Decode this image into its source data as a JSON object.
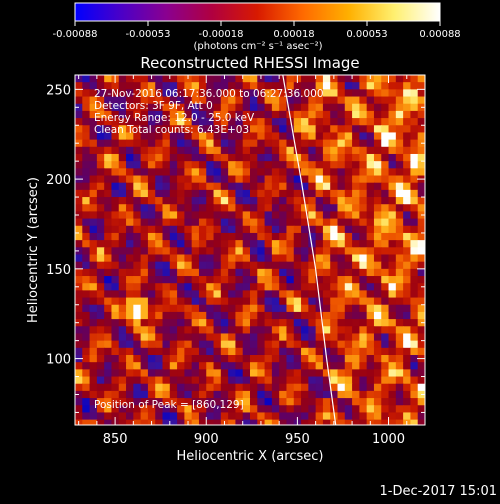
{
  "colorbar": {
    "tick_labels": [
      "-0.00088",
      "-0.00053",
      "-0.00018",
      "0.00018",
      "0.00053",
      "0.00088"
    ],
    "units": "(photons cm⁻² s⁻¹ asec⁻²)",
    "colors": [
      "#0000ff",
      "#4a00c8",
      "#8a0090",
      "#b00040",
      "#d81a00",
      "#ff6a00",
      "#ffb000",
      "#fff070",
      "#ffffff"
    ]
  },
  "chart_data": {
    "type": "heatmap",
    "title": "Reconstructed RHESSI Image",
    "xlabel": "Heliocentric X (arcsec)",
    "ylabel": "Heliocentric Y (arcsec)",
    "xlim": [
      828,
      1020
    ],
    "ylim": [
      63,
      258
    ],
    "x_ticks": [
      850,
      900,
      950,
      1000
    ],
    "y_ticks": [
      100,
      150,
      200,
      250
    ],
    "limb_curve": {
      "x": [
        942,
        952,
        960,
        966,
        971
      ],
      "y": [
        258,
        200,
        150,
        100,
        63
      ]
    },
    "peak": {
      "x": 860,
      "y": 129
    },
    "annotations": [
      "27-Nov-2016 06:17:36.000 to 06:27:36.000",
      "Detectors: 3F 9F, Att 0",
      "Energy Range: 12.0 - 25.0 keV",
      "Clean    Total counts: 6.43E+03"
    ],
    "peak_label": "Position of Peak = [860,129]"
  },
  "footer": {
    "date": "1-Dec-2017 15:01"
  }
}
